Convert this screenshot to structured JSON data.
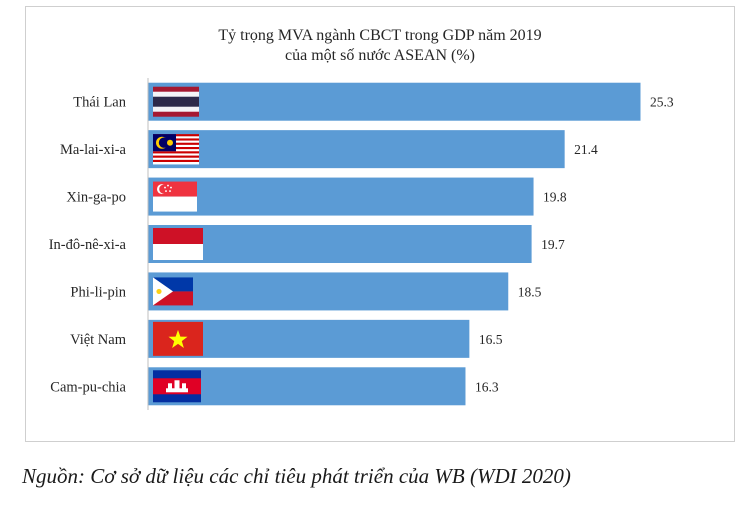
{
  "colors": {
    "bar": "#5b9bd5",
    "axis": "#bfbfbf",
    "text": "#262626"
  },
  "chart_data": {
    "type": "bar",
    "orientation": "horizontal",
    "title": "Tỷ trọng MVA ngành CBCT trong GDP năm 2019",
    "subtitle": "của một số nước ASEAN (%)",
    "categories": [
      "Thái Lan",
      "Ma-lai-xi-a",
      "Xin-ga-po",
      "In-đô-nê-xi-a",
      "Phi-li-pin",
      "Việt Nam",
      "Cam-pu-chia"
    ],
    "values": [
      25.3,
      21.4,
      19.8,
      19.7,
      18.5,
      16.5,
      16.3
    ],
    "value_labels": [
      "25.3",
      "21.4",
      "19.8",
      "19.7",
      "18.5",
      "16.5",
      "16.3"
    ],
    "flag_icons": [
      "thailand-flag-icon",
      "malaysia-flag-icon",
      "singapore-flag-icon",
      "indonesia-flag-icon",
      "philippines-flag-icon",
      "vietnam-flag-icon",
      "cambodia-flag-icon"
    ],
    "xlim": [
      0,
      25.3
    ],
    "grid": false,
    "legend": "none",
    "data_labels": "outside-end"
  },
  "source_note": "Nguồn: Cơ sở dữ liệu các chỉ tiêu phát triển của WB (WDI 2020)"
}
